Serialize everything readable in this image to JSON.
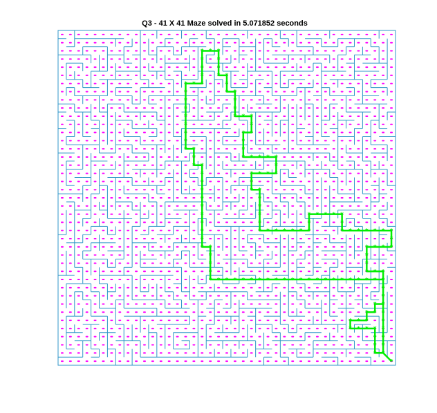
{
  "figure": {
    "title": "Q3 - 41 X 41 Maze solved in 5.071852 seconds"
  },
  "colors": {
    "wall": "#2f96c8",
    "cell_dot": "#ff00ff",
    "path": "#00ee00",
    "background": "#ffffff"
  },
  "maze": {
    "rows": 41,
    "cols": 41,
    "path_cells": [
      [
        0,
        40
      ],
      [
        1,
        39
      ],
      [
        2,
        39
      ],
      [
        3,
        39
      ],
      [
        4,
        39
      ],
      [
        5,
        39
      ],
      [
        6,
        39
      ],
      [
        7,
        39
      ],
      [
        8,
        39
      ],
      [
        9,
        39
      ],
      [
        10,
        39
      ],
      [
        11,
        39
      ],
      [
        11,
        38
      ],
      [
        11,
        37
      ],
      [
        12,
        37
      ],
      [
        13,
        37
      ],
      [
        14,
        37
      ],
      [
        14,
        38
      ],
      [
        14,
        39
      ],
      [
        14,
        40
      ],
      [
        15,
        40
      ],
      [
        16,
        40
      ],
      [
        16,
        39
      ],
      [
        16,
        38
      ],
      [
        16,
        37
      ],
      [
        16,
        36
      ],
      [
        16,
        35
      ],
      [
        16,
        34
      ],
      [
        17,
        34
      ],
      [
        18,
        34
      ],
      [
        18,
        33
      ],
      [
        18,
        32
      ],
      [
        18,
        31
      ],
      [
        18,
        30
      ],
      [
        17,
        30
      ],
      [
        16,
        30
      ],
      [
        16,
        29
      ],
      [
        16,
        28
      ],
      [
        16,
        27
      ],
      [
        16,
        26
      ],
      [
        16,
        25
      ],
      [
        16,
        24
      ],
      [
        17,
        24
      ],
      [
        18,
        24
      ],
      [
        19,
        24
      ],
      [
        20,
        24
      ],
      [
        21,
        24
      ],
      [
        21,
        23
      ],
      [
        22,
        23
      ],
      [
        23,
        23
      ],
      [
        23,
        24
      ],
      [
        23,
        25
      ],
      [
        23,
        26
      ],
      [
        24,
        26
      ],
      [
        25,
        26
      ],
      [
        25,
        25
      ],
      [
        25,
        24
      ],
      [
        25,
        23
      ],
      [
        25,
        22
      ],
      [
        26,
        22
      ],
      [
        27,
        22
      ],
      [
        28,
        22
      ],
      [
        28,
        23
      ],
      [
        29,
        23
      ],
      [
        30,
        23
      ],
      [
        30,
        22
      ],
      [
        30,
        21
      ],
      [
        31,
        21
      ],
      [
        32,
        21
      ],
      [
        33,
        21
      ],
      [
        33,
        20
      ],
      [
        34,
        20
      ],
      [
        35,
        20
      ],
      [
        35,
        19
      ],
      [
        36,
        19
      ],
      [
        37,
        19
      ],
      [
        38,
        19
      ],
      [
        38,
        18
      ],
      [
        38,
        17
      ],
      [
        37,
        17
      ],
      [
        36,
        17
      ],
      [
        35,
        17
      ],
      [
        34,
        17
      ],
      [
        34,
        16
      ],
      [
        34,
        15
      ],
      [
        33,
        15
      ],
      [
        32,
        15
      ],
      [
        31,
        15
      ],
      [
        30,
        15
      ],
      [
        29,
        15
      ],
      [
        28,
        15
      ],
      [
        27,
        15
      ],
      [
        26,
        15
      ],
      [
        26,
        16
      ],
      [
        25,
        16
      ],
      [
        24,
        16
      ],
      [
        24,
        17
      ],
      [
        23,
        17
      ],
      [
        22,
        17
      ],
      [
        21,
        17
      ],
      [
        20,
        17
      ],
      [
        19,
        17
      ],
      [
        18,
        17
      ],
      [
        17,
        17
      ],
      [
        16,
        17
      ],
      [
        15,
        17
      ],
      [
        14,
        17
      ],
      [
        14,
        18
      ],
      [
        13,
        18
      ],
      [
        12,
        18
      ],
      [
        11,
        18
      ],
      [
        10,
        18
      ],
      [
        10,
        19
      ],
      [
        10,
        20
      ],
      [
        10,
        21
      ],
      [
        10,
        22
      ],
      [
        10,
        23
      ],
      [
        10,
        24
      ],
      [
        10,
        25
      ],
      [
        10,
        26
      ],
      [
        10,
        27
      ],
      [
        10,
        28
      ],
      [
        10,
        29
      ],
      [
        10,
        30
      ],
      [
        10,
        31
      ],
      [
        10,
        32
      ],
      [
        10,
        33
      ],
      [
        10,
        34
      ],
      [
        10,
        35
      ],
      [
        10,
        36
      ],
      [
        10,
        37
      ],
      [
        10,
        38
      ],
      [
        10,
        39
      ],
      [
        9,
        39
      ],
      [
        8,
        39
      ],
      [
        7,
        39
      ],
      [
        7,
        38
      ],
      [
        6,
        38
      ],
      [
        6,
        37
      ],
      [
        5,
        37
      ],
      [
        5,
        36
      ],
      [
        5,
        35
      ],
      [
        4,
        35
      ],
      [
        4,
        36
      ],
      [
        4,
        37
      ],
      [
        4,
        38
      ],
      [
        3,
        38
      ],
      [
        2,
        38
      ],
      [
        1,
        38
      ],
      [
        1,
        39
      ],
      [
        0,
        40
      ]
    ]
  }
}
